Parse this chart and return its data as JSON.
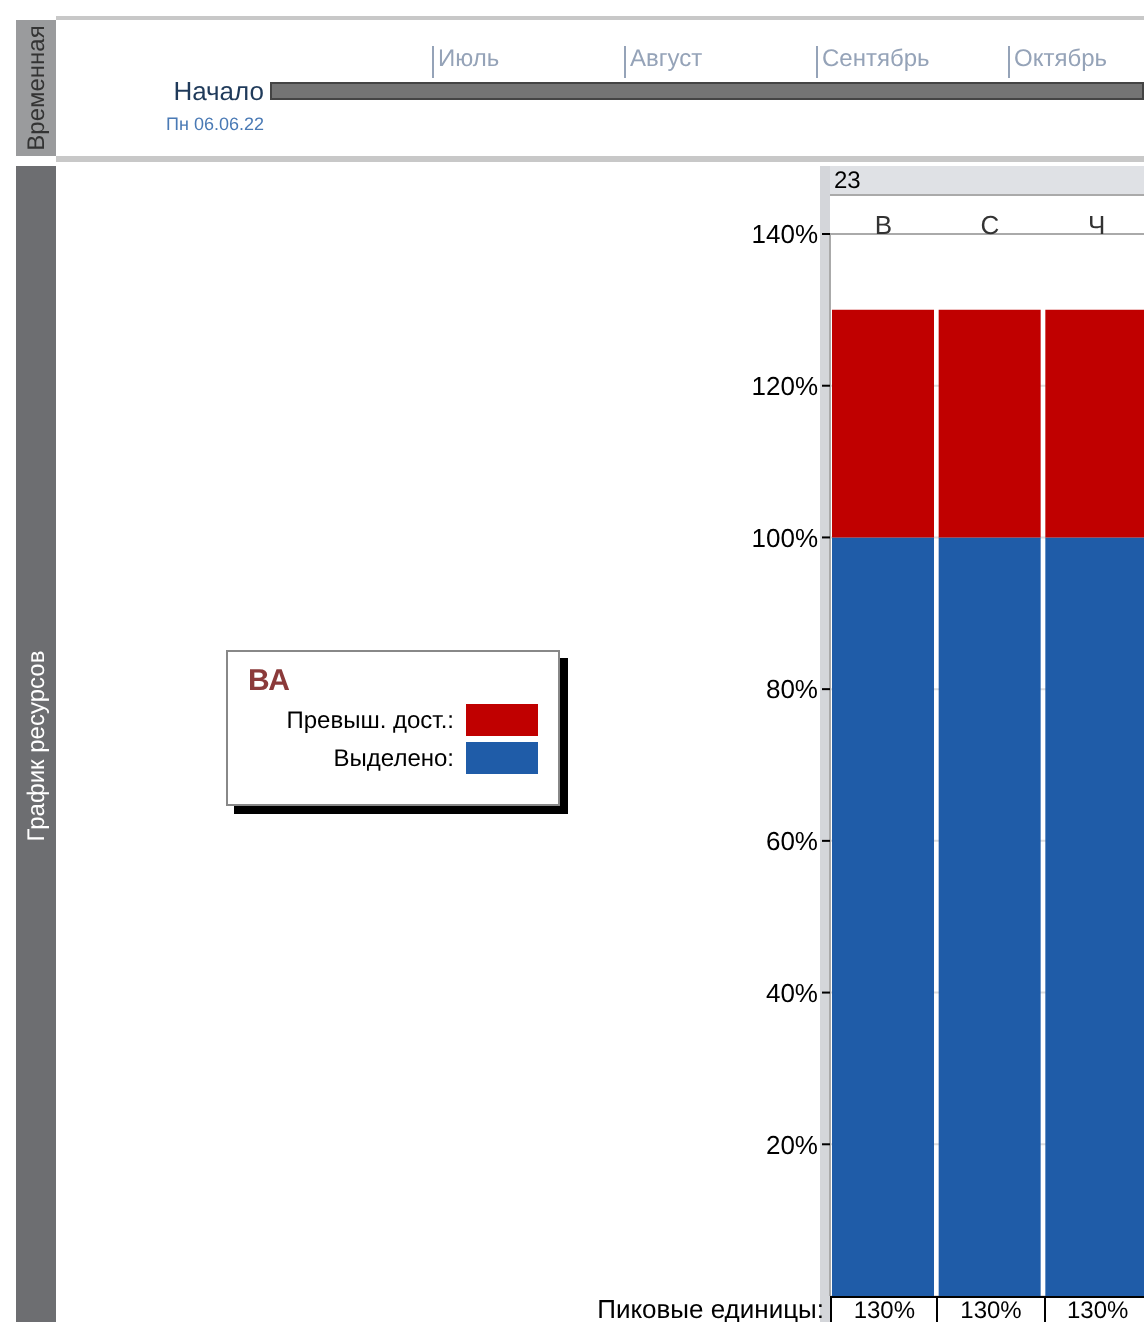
{
  "chart_data": {
    "type": "bar",
    "stacked": true,
    "categories": [
      "В",
      "С",
      "Ч"
    ],
    "series": [
      {
        "name": "Выделено:",
        "color": "#1f5ca8",
        "values": [
          100,
          100,
          100
        ]
      },
      {
        "name": "Превыш. дост.:",
        "color": "#c00000",
        "values": [
          30,
          30,
          30
        ]
      }
    ],
    "ylim": [
      0,
      140
    ],
    "yticks": [
      {
        "value": 20,
        "label": "20%"
      },
      {
        "value": 40,
        "label": "40%"
      },
      {
        "value": 60,
        "label": "60%"
      },
      {
        "value": 80,
        "label": "80%"
      },
      {
        "value": 100,
        "label": "100%"
      },
      {
        "value": 120,
        "label": "120%"
      },
      {
        "value": 140,
        "label": "140%"
      }
    ],
    "grid": "y",
    "legend": "left",
    "legend_title": "ВА",
    "totals": [
      "130%",
      "130%",
      "130%"
    ],
    "annotations": [
      "Временная",
      "Начало",
      "Пн 06.06.22",
      "Июль",
      "Август",
      "Сентябрь",
      "Октябрь",
      "График ресурсов",
      "23",
      "Пиковые единицы:"
    ]
  }
}
